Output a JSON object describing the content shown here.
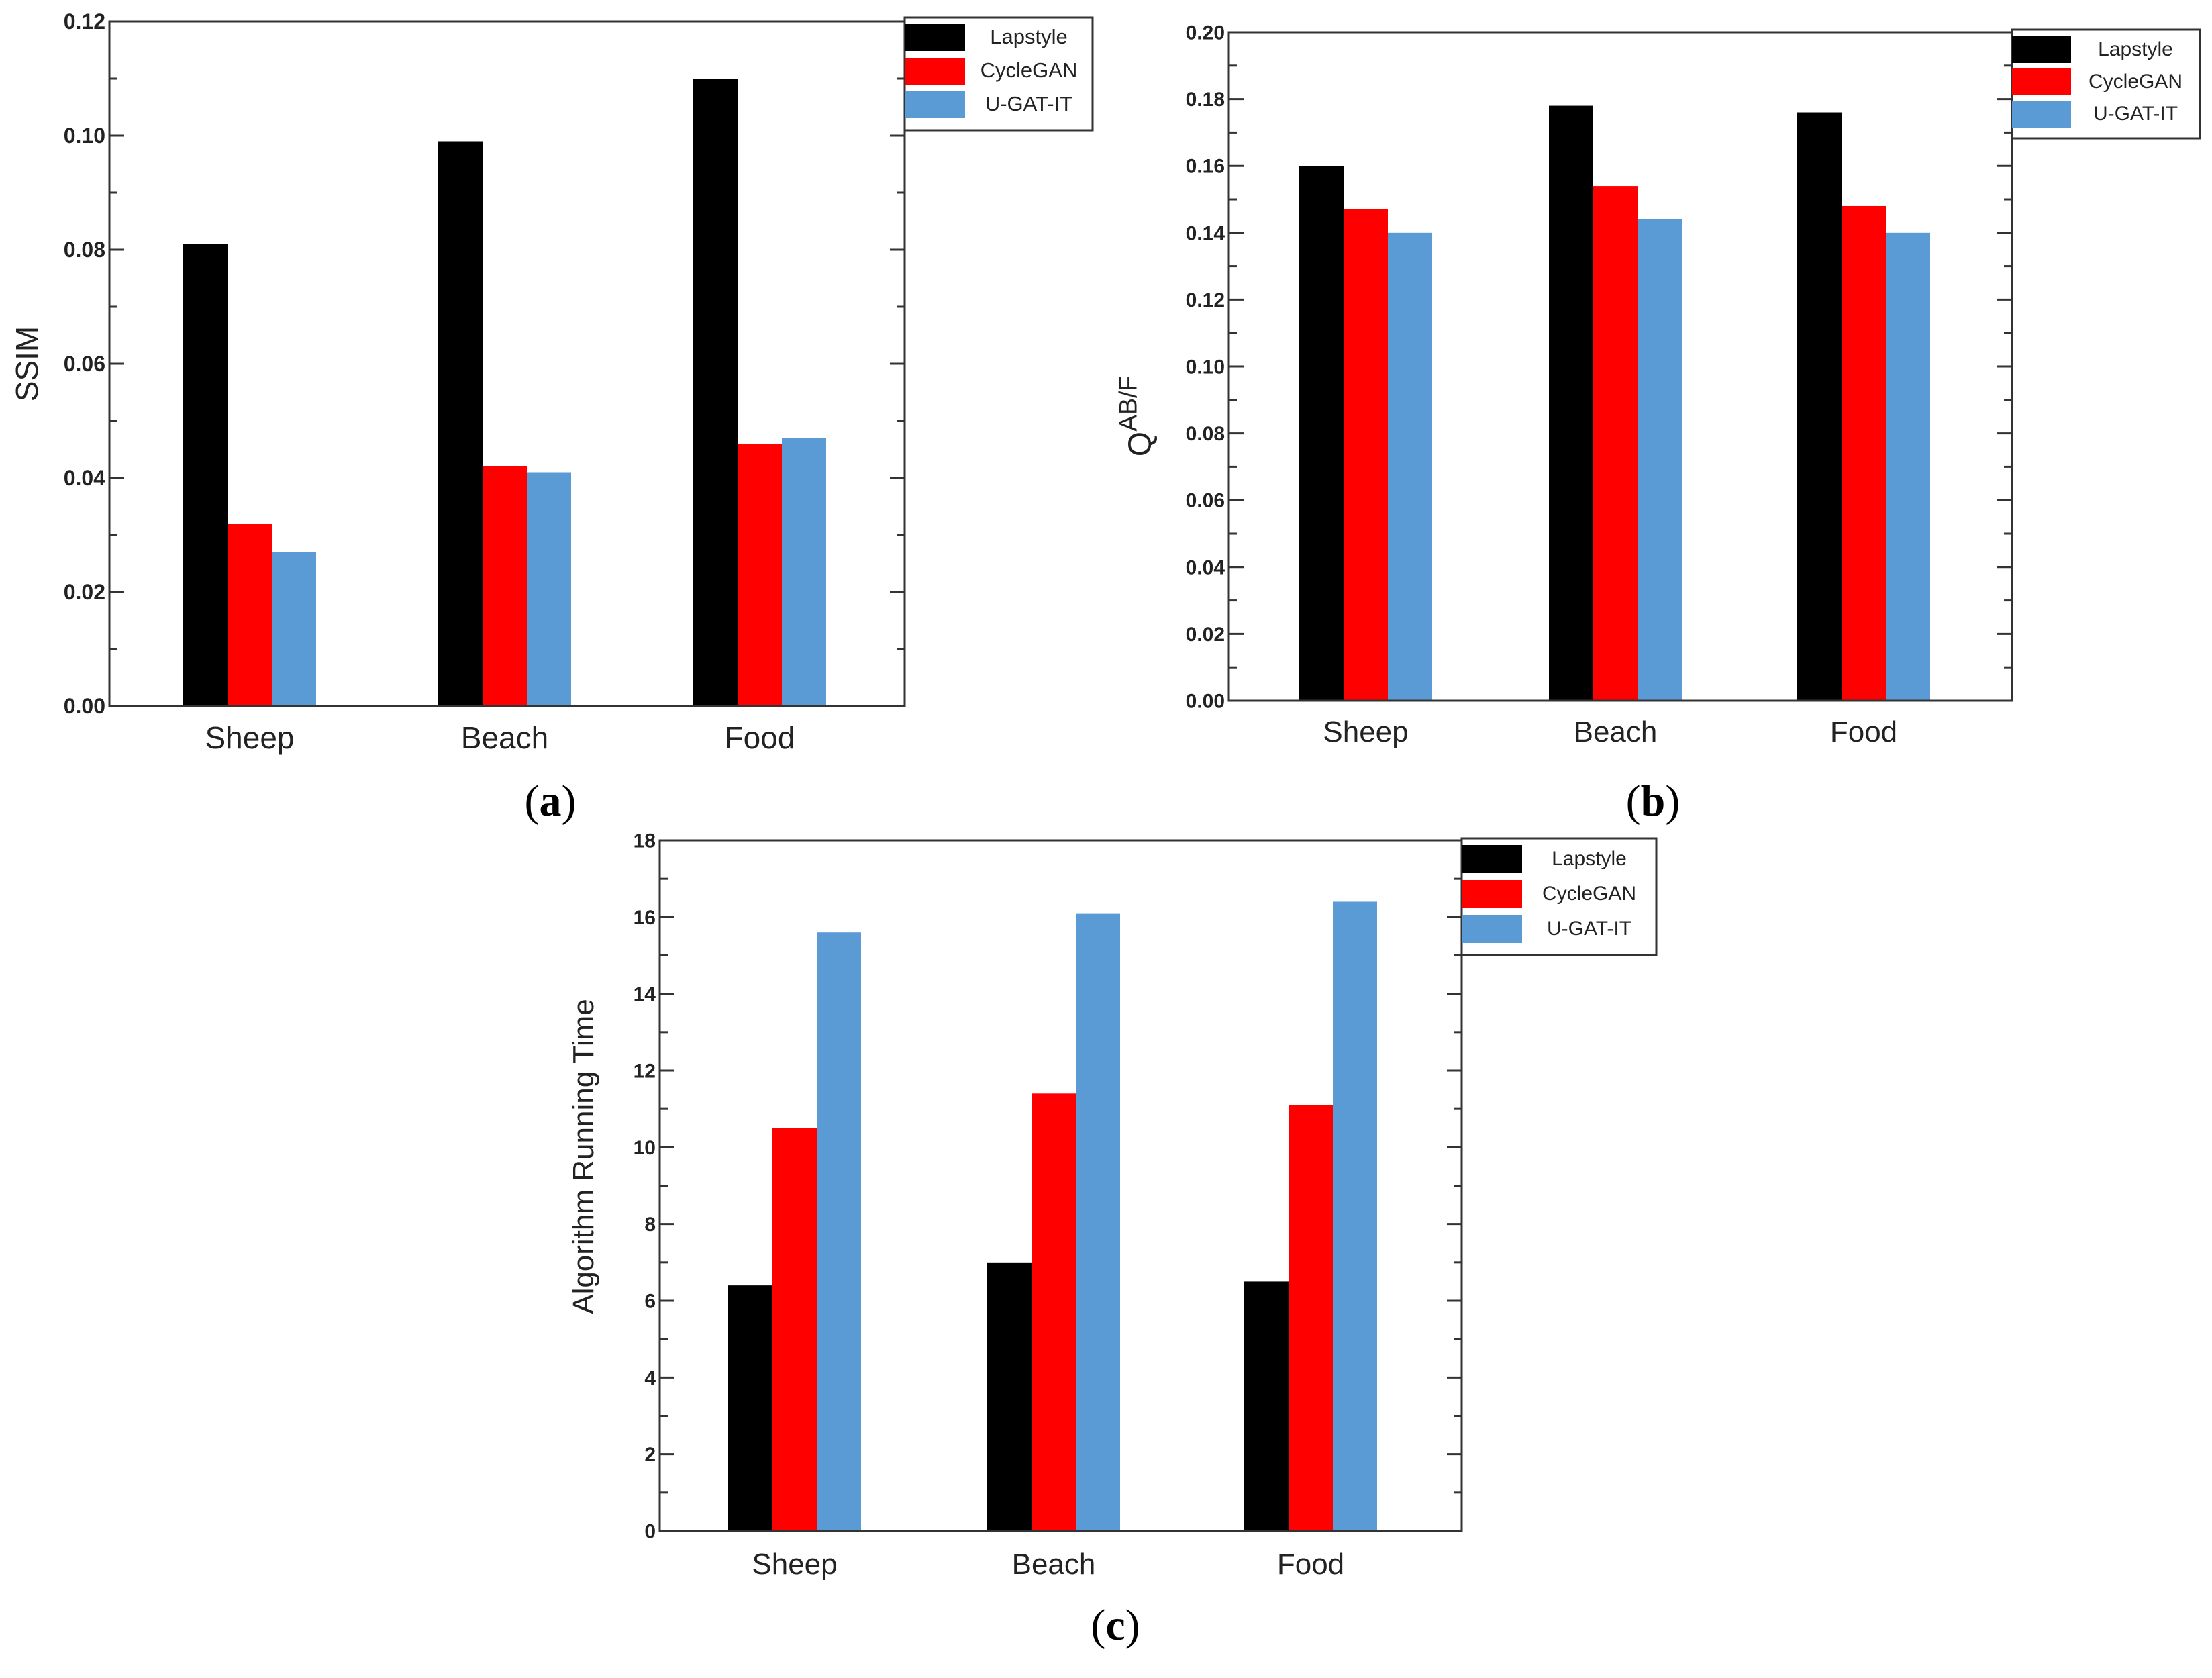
{
  "chart_data": [
    {
      "type": "bar",
      "panel_label": "a",
      "title": "",
      "xlabel": "",
      "ylabel": "SSIM",
      "ylim": [
        0,
        0.12
      ],
      "yticks": [
        "0.00",
        "0.02",
        "0.04",
        "0.06",
        "0.08",
        "0.10",
        "0.12"
      ],
      "categories": [
        "Sheep",
        "Beach",
        "Food"
      ],
      "series": [
        {
          "name": "Lapstyle",
          "color": "#000000",
          "values": [
            0.081,
            0.099,
            0.11
          ]
        },
        {
          "name": "CycleGAN",
          "color": "#ff0000",
          "values": [
            0.032,
            0.042,
            0.046
          ]
        },
        {
          "name": "U-GAT-IT",
          "color": "#5b9bd5",
          "values": [
            0.027,
            0.041,
            0.047
          ]
        }
      ],
      "legend": "top-right",
      "grid": false
    },
    {
      "type": "bar",
      "panel_label": "b",
      "title": "",
      "xlabel": "",
      "ylabel": "Q",
      "ylabel_sup": "AB/F",
      "ylim": [
        0,
        0.2
      ],
      "yticks": [
        "0.00",
        "0.02",
        "0.04",
        "0.06",
        "0.08",
        "0.10",
        "0.12",
        "0.14",
        "0.16",
        "0.18",
        "0.20"
      ],
      "categories": [
        "Sheep",
        "Beach",
        "Food"
      ],
      "series": [
        {
          "name": "Lapstyle",
          "color": "#000000",
          "values": [
            0.16,
            0.178,
            0.176
          ]
        },
        {
          "name": "CycleGAN",
          "color": "#ff0000",
          "values": [
            0.147,
            0.154,
            0.148
          ]
        },
        {
          "name": "U-GAT-IT",
          "color": "#5b9bd5",
          "values": [
            0.14,
            0.144,
            0.14
          ]
        }
      ],
      "legend": "top-right",
      "grid": false
    },
    {
      "type": "bar",
      "panel_label": "c",
      "title": "",
      "xlabel": "",
      "ylabel": "Algorithm Running Time",
      "ylim": [
        0,
        18
      ],
      "yticks": [
        "0",
        "2",
        "4",
        "6",
        "8",
        "10",
        "12",
        "14",
        "16",
        "18"
      ],
      "categories": [
        "Sheep",
        "Beach",
        "Food"
      ],
      "series": [
        {
          "name": "Lapstyle",
          "color": "#000000",
          "values": [
            6.4,
            7.0,
            6.5
          ]
        },
        {
          "name": "CycleGAN",
          "color": "#ff0000",
          "values": [
            10.5,
            11.4,
            11.1
          ]
        },
        {
          "name": "U-GAT-IT",
          "color": "#5b9bd5",
          "values": [
            15.6,
            16.1,
            16.4
          ]
        }
      ],
      "legend": "top-right",
      "grid": false
    }
  ]
}
